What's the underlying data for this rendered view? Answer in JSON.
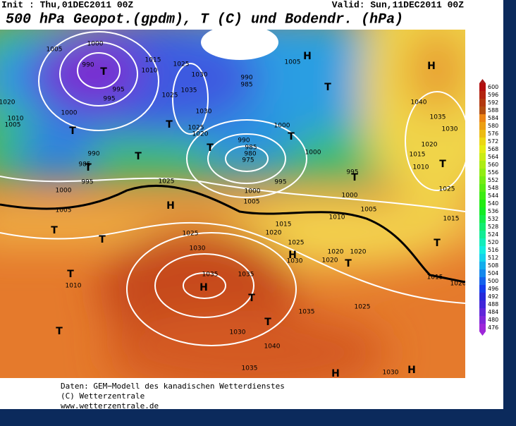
{
  "header": {
    "init": "Init : Thu,01DEC2011 00Z",
    "valid": "Valid: Sun,11DEC2011 00Z",
    "title": "500 hPa Geopot.(gpdm), T (C) und Bodendr. (hPa)"
  },
  "map": {
    "contour_labels": [
      "1000",
      "1005",
      "990",
      "T",
      "995",
      "995",
      "1000",
      "1010",
      "1005",
      "1020",
      "T",
      "990",
      "985",
      "T",
      "995",
      "1000",
      "1005",
      "1015",
      "1010",
      "1025",
      "1030",
      "1035",
      "1025",
      "1030",
      "1025",
      "1020",
      "T",
      "T",
      "990",
      "985",
      "H",
      "1005",
      "T",
      "1000",
      "990",
      "985",
      "980",
      "975",
      "T",
      "T",
      "1000",
      "995",
      "1000",
      "1005",
      "995",
      "T",
      "1000",
      "1005",
      "1010",
      "H",
      "1040",
      "1035",
      "1030",
      "1020",
      "1015",
      "1010",
      "T",
      "1025",
      "1015",
      "T",
      "1015",
      "1020",
      "1025",
      "H",
      "T",
      "T",
      "T",
      "1010",
      "T",
      "1025",
      "1030",
      "1035",
      "H",
      "1035",
      "T",
      "1030",
      "T",
      "1040",
      "1035",
      "1035",
      "1025",
      "1015",
      "1020",
      "1025",
      "H",
      "1030",
      "1020",
      "1020",
      "1020",
      "T",
      "1030",
      "H",
      "H"
    ]
  },
  "colorbar": {
    "ticks": [
      600,
      596,
      592,
      588,
      584,
      580,
      576,
      572,
      568,
      564,
      560,
      556,
      552,
      548,
      544,
      540,
      536,
      532,
      528,
      524,
      520,
      516,
      512,
      508,
      504,
      500,
      496,
      492,
      488,
      484,
      480,
      476
    ]
  },
  "footer": {
    "lines": [
      "Daten: GEM−Modell des kanadischen Wetterdienstes",
      "(C) Wetterzentrale",
      "www.wetterzentrale.de"
    ]
  }
}
